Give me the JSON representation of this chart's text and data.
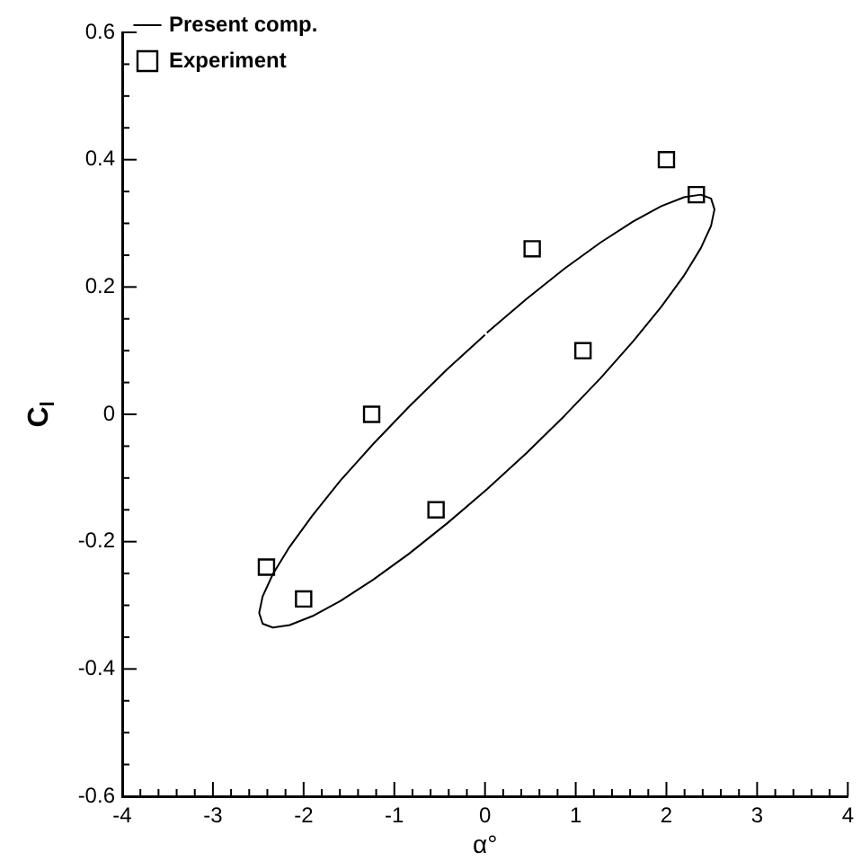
{
  "chart_data": {
    "type": "scatter",
    "xlabel": "α°",
    "ylabel": "C$_{l}$",
    "xlim": [
      -4,
      4
    ],
    "ylim": [
      -0.6,
      0.6
    ],
    "grid": false,
    "legend": "top left",
    "xticks": [
      -4,
      {
        "value": -3.8,
        "label": null
      },
      {
        "value": -3.6,
        "label": null
      },
      {
        "value": -3.4,
        "label": null
      },
      {
        "value": -3.2,
        "label": null
      },
      -3,
      {
        "value": -2.8,
        "label": null
      },
      {
        "value": -2.6,
        "label": null
      },
      {
        "value": -2.4,
        "label": null
      },
      {
        "value": -2.2,
        "label": null
      },
      -2,
      {
        "value": -1.8,
        "label": null
      },
      {
        "value": -1.6,
        "label": null
      },
      {
        "value": -1.4,
        "label": null
      },
      {
        "value": -1.2,
        "label": null
      },
      -1,
      {
        "value": -0.8,
        "label": null
      },
      {
        "value": -0.6,
        "label": null
      },
      {
        "value": -0.4,
        "label": null
      },
      {
        "value": -0.2,
        "label": null
      },
      0,
      {
        "value": 0.2,
        "label": null
      },
      {
        "value": 0.4,
        "label": null
      },
      {
        "value": 0.6,
        "label": null
      },
      {
        "value": 0.8,
        "label": null
      },
      1,
      {
        "value": 1.2,
        "label": null
      },
      {
        "value": 1.4,
        "label": null
      },
      {
        "value": 1.6,
        "label": null
      },
      {
        "value": 1.8,
        "label": null
      },
      2,
      {
        "value": 2.2,
        "label": null
      },
      {
        "value": 2.4,
        "label": null
      },
      {
        "value": 2.6,
        "label": null
      },
      {
        "value": 2.8,
        "label": null
      },
      3,
      {
        "value": 3.2,
        "label": null
      },
      {
        "value": 3.4,
        "label": null
      },
      {
        "value": 3.6,
        "label": null
      },
      {
        "value": 3.8,
        "label": null
      },
      4
    ],
    "yticks": [
      -0.6,
      {
        "value": -0.55,
        "label": null
      },
      {
        "value": -0.5,
        "label": null
      },
      {
        "value": -0.45,
        "label": null
      },
      -0.4,
      {
        "value": -0.35,
        "label": null
      },
      {
        "value": -0.3,
        "label": null
      },
      {
        "value": -0.25,
        "label": null
      },
      -0.2,
      {
        "value": -0.15,
        "label": null
      },
      {
        "value": -0.1,
        "label": null
      },
      {
        "value": -0.05,
        "label": null
      },
      0,
      {
        "value": 0.05,
        "label": null
      },
      {
        "value": 0.1,
        "label": null
      },
      {
        "value": 0.15,
        "label": null
      },
      0.2,
      {
        "value": 0.25,
        "label": null
      },
      {
        "value": 0.3,
        "label": null
      },
      {
        "value": 0.35,
        "label": null
      },
      0.4,
      {
        "value": 0.45,
        "label": null
      },
      {
        "value": 0.5,
        "label": null
      },
      {
        "value": 0.55,
        "label": null
      },
      0.6
    ],
    "series": [
      {
        "name": "Present comp.",
        "type": "line",
        "color": "#000000",
        "marker": "none",
        "line_style": "solid",
        "x": [
          0.02,
          0.456,
          0.878,
          1.275,
          1.634,
          1.943,
          2.194,
          2.379,
          2.492,
          2.53,
          2.492,
          2.379,
          2.194,
          1.943,
          1.634,
          1.275,
          0.878,
          0.456,
          0.02,
          -0.416,
          -0.838,
          -1.235,
          -1.594,
          -1.903,
          -2.154,
          -2.339,
          -2.452,
          -2.49,
          -2.452,
          -2.339,
          -2.154,
          -1.903,
          -1.594,
          -1.235,
          -0.838,
          -0.416,
          0.0
        ],
        "values": [
          0.128,
          0.181,
          0.229,
          0.27,
          0.303,
          0.327,
          0.341,
          0.345,
          0.339,
          0.322,
          0.296,
          0.261,
          0.218,
          0.169,
          0.115,
          0.057,
          -0.002,
          -0.061,
          -0.118,
          -0.171,
          -0.219,
          -0.26,
          -0.293,
          -0.317,
          -0.331,
          -0.335,
          -0.329,
          -0.312,
          -0.286,
          -0.251,
          -0.208,
          -0.159,
          -0.104,
          -0.047,
          0.012,
          0.071,
          0.125
        ]
      },
      {
        "name": "Experiment",
        "type": "scatter",
        "color": "#000000",
        "marker": "square",
        "x": [
          -2.41,
          -2.0,
          -1.25,
          -0.54,
          0.52,
          1.08,
          2.0,
          2.33
        ],
        "values": [
          -0.24,
          -0.29,
          0.0,
          -0.15,
          0.26,
          0.1,
          0.4,
          0.345
        ]
      }
    ]
  }
}
